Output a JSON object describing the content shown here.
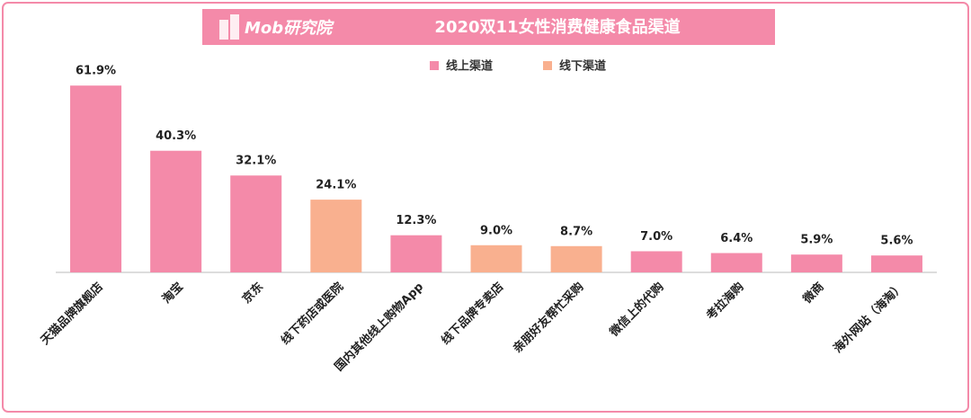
{
  "chart_data": {
    "type": "bar",
    "brand": "Mob研究院",
    "title": "2020双11女性消费健康食品渠道",
    "categories": [
      "天猫品牌旗舰店",
      "淘宝",
      "京东",
      "线下药店或医院",
      "国内其他线上购物App",
      "线下品牌专卖店",
      "亲朋好友帮忙采购",
      "微信上的代购",
      "考拉海购",
      "微商",
      "海外网站（海淘）"
    ],
    "series": [
      {
        "name": "线上渠道",
        "color": "#f48aa9",
        "values": [
          61.9,
          40.3,
          32.1,
          null,
          12.3,
          null,
          null,
          7.0,
          6.4,
          5.9,
          5.6
        ],
        "value_labels": [
          "61.9%",
          "40.3%",
          "32.1%",
          null,
          "12.3%",
          null,
          null,
          "7.0%",
          "6.4%",
          "5.9%",
          "5.6%"
        ]
      },
      {
        "name": "线下渠道",
        "color": "#f9b08f",
        "values": [
          null,
          null,
          null,
          24.1,
          null,
          9.0,
          8.7,
          null,
          null,
          null,
          null
        ],
        "value_labels": [
          null,
          null,
          null,
          "24.1%",
          null,
          "9.0%",
          "8.7%",
          null,
          null,
          null,
          null
        ]
      }
    ],
    "ylim": [
      0,
      70
    ],
    "legend": "top"
  }
}
